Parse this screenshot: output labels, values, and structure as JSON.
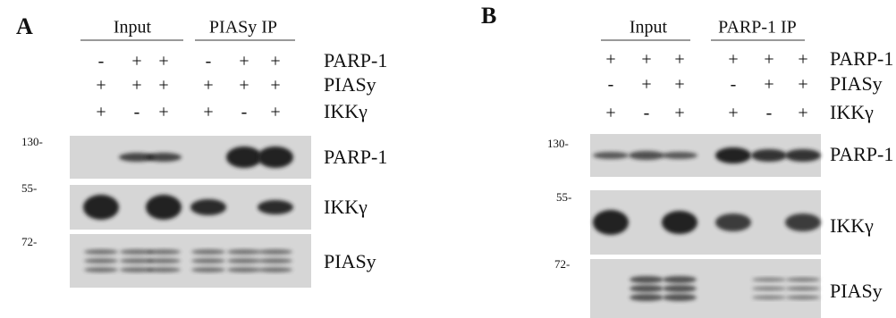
{
  "panels": [
    {
      "letter": "A",
      "groups": [
        "Input",
        "PIASy IP"
      ],
      "rows": [
        {
          "label": "PARP-1",
          "signs": [
            "-",
            "+",
            "+",
            "-",
            "+",
            "+"
          ]
        },
        {
          "label": "PIASy",
          "signs": [
            "+",
            "+",
            "+",
            "+",
            "+",
            "+"
          ]
        },
        {
          "label": "IKKγ",
          "signs": [
            "+",
            "-",
            "+",
            "+",
            "-",
            "+"
          ]
        }
      ],
      "blots": [
        {
          "marker": "130-",
          "label": "PARP-1"
        },
        {
          "marker": "55-",
          "label": "IKKγ"
        },
        {
          "marker": "72-",
          "label": "PIASy"
        }
      ]
    },
    {
      "letter": "B",
      "groups": [
        "Input",
        "PARP-1 IP"
      ],
      "rows": [
        {
          "label": "PARP-1",
          "signs": [
            "+",
            "+",
            "+",
            "+",
            "+",
            "+"
          ]
        },
        {
          "label": "PIASy",
          "signs": [
            "-",
            "+",
            "+",
            "-",
            "+",
            "+"
          ]
        },
        {
          "label": "IKKγ",
          "signs": [
            "+",
            "-",
            "+",
            "+",
            "-",
            "+"
          ]
        }
      ],
      "blots": [
        {
          "marker": "130-",
          "label": "PARP-1"
        },
        {
          "marker": "55-",
          "label": "IKKγ"
        },
        {
          "marker": "72-",
          "label": "PIASy"
        }
      ]
    }
  ]
}
